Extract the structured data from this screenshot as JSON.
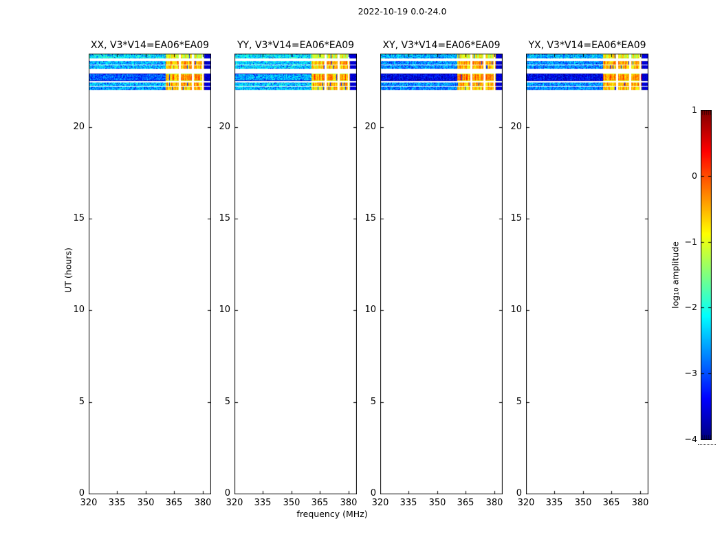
{
  "figure": {
    "title": "2022-10-19 0.0-24.0"
  },
  "axes": {
    "xlabel": "frequency (MHz)",
    "ylabel": "UT (hours)",
    "x_ticks": [
      320,
      335,
      350,
      365,
      380
    ],
    "x_lim": [
      320,
      384
    ],
    "y_ticks": [
      0,
      5,
      10,
      15,
      20
    ],
    "y_lim": [
      0,
      24
    ]
  },
  "panels": [
    {
      "pol": "XX",
      "title": "XX, V3*V14=EA06*EA09"
    },
    {
      "pol": "YY",
      "title": "YY, V3*V14=EA06*EA09"
    },
    {
      "pol": "XY",
      "title": "XY, V3*V14=EA06*EA09"
    },
    {
      "pol": "YX",
      "title": "YX, V3*V14=EA06*EA09"
    }
  ],
  "colorbar": {
    "label_prefix": "log",
    "label_sub": "10",
    "label_suffix": " amplitude",
    "lim": [
      -4,
      1
    ],
    "colormap": "jet",
    "ticks": [
      {
        "label": "1",
        "value": 1
      },
      {
        "label": "0",
        "value": 0
      },
      {
        "label": "−1",
        "value": -1
      },
      {
        "label": "−2",
        "value": -2
      },
      {
        "label": "−3",
        "value": -3
      },
      {
        "label": "−4",
        "value": -4
      }
    ]
  },
  "chart_data": {
    "type": "heatmap",
    "title": "2022-10-19 0.0-24.0",
    "subplot_titles": [
      "XX, V3*V14=EA06*EA09",
      "YY, V3*V14=EA06*EA09",
      "XY, V3*V14=EA06*EA09",
      "YX, V3*V14=EA06*EA09"
    ],
    "xlabel": "frequency (MHz)",
    "ylabel": "UT (hours)",
    "x_lim_mhz": [
      320,
      384
    ],
    "x_ticks_mhz": [
      320,
      335,
      350,
      365,
      380
    ],
    "y_lim_hours": [
      0,
      24
    ],
    "y_ticks_hours": [
      0,
      5,
      10,
      15,
      20
    ],
    "colorbar_label": "log10 amplitude",
    "value_range_log10_amp": [
      -4,
      1
    ],
    "colormap": "jet",
    "background_log_amp": null,
    "bands": [
      {
        "ut_range": [
          23.77,
          23.95
        ],
        "thick": false,
        "left_log_amp": {
          "XX": -2.2,
          "YY": -2.2,
          "XY": -2.45,
          "YX": -2.45
        },
        "right_log_amp": {
          "XX": -1.05,
          "YY": -1.05,
          "XY": -1.0,
          "YX": -1.0
        }
      },
      {
        "ut_range": [
          23.44,
          23.58
        ],
        "thick": false,
        "left_log_amp": {
          "XX": -2.45,
          "YY": -2.35,
          "XY": -2.65,
          "YX": -2.65
        },
        "right_log_amp": {
          "XX": -0.5,
          "YY": -0.5,
          "XY": -0.45,
          "YX": -0.5
        }
      },
      {
        "ut_range": [
          23.2,
          23.35
        ],
        "thick": false,
        "left_log_amp": {
          "XX": -2.45,
          "YY": -2.35,
          "XY": -2.65,
          "YX": -2.65
        },
        "right_log_amp": {
          "XX": -0.65,
          "YY": -0.65,
          "XY": -0.6,
          "YX": -0.65
        }
      },
      {
        "ut_range": [
          22.57,
          22.88
        ],
        "thick": true,
        "left_log_amp": {
          "XX": -2.9,
          "YY": -2.5,
          "XY": -3.45,
          "YX": -3.45
        },
        "right_log_amp": {
          "XX": -0.4,
          "YY": -0.35,
          "XY": -0.22,
          "YX": -0.25
        }
      },
      {
        "ut_range": [
          22.28,
          22.42
        ],
        "thick": false,
        "left_log_amp": {
          "XX": -2.45,
          "YY": -2.35,
          "XY": -2.65,
          "YX": -2.65
        },
        "right_log_amp": {
          "XX": -0.5,
          "YY": -0.5,
          "XY": -0.45,
          "YX": -0.5
        }
      },
      {
        "ut_range": [
          22.05,
          22.19
        ],
        "thick": false,
        "left_log_amp": {
          "XX": -2.55,
          "YY": -2.4,
          "XY": -2.7,
          "YX": -2.7
        },
        "right_log_amp": {
          "XX": -0.7,
          "YY": -0.7,
          "XY": -0.65,
          "YX": -0.7
        }
      }
    ],
    "rfi_region": {
      "start_frac": 0.63,
      "gaps_frac": [
        [
          0.735,
          0.752
        ],
        [
          0.845,
          0.862
        ],
        [
          0.928,
          0.94
        ]
      ],
      "tail_start_frac": 0.945,
      "tail_log_amp": -3.6
    }
  }
}
